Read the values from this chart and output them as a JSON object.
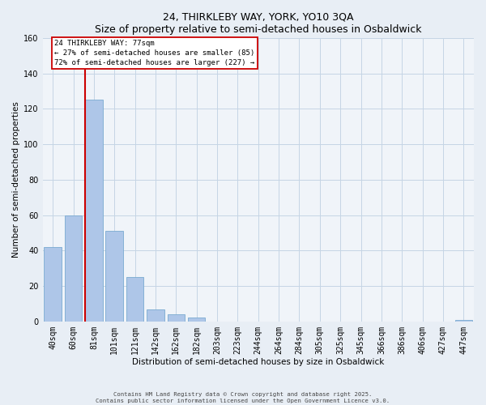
{
  "title": "24, THIRKLEBY WAY, YORK, YO10 3QA",
  "subtitle": "Size of property relative to semi-detached houses in Osbaldwick",
  "xlabel": "Distribution of semi-detached houses by size in Osbaldwick",
  "ylabel": "Number of semi-detached properties",
  "bins": [
    "40sqm",
    "60sqm",
    "81sqm",
    "101sqm",
    "121sqm",
    "142sqm",
    "162sqm",
    "182sqm",
    "203sqm",
    "223sqm",
    "244sqm",
    "264sqm",
    "284sqm",
    "305sqm",
    "325sqm",
    "345sqm",
    "366sqm",
    "386sqm",
    "406sqm",
    "427sqm",
    "447sqm"
  ],
  "values": [
    42,
    60,
    125,
    51,
    25,
    7,
    4,
    2,
    0,
    0,
    0,
    0,
    0,
    0,
    0,
    0,
    0,
    0,
    0,
    0,
    1
  ],
  "bar_color": "#aec6e8",
  "bar_edge_color": "#7aaad0",
  "property_size": "77sqm",
  "pct_smaller": 27,
  "count_smaller": 85,
  "pct_larger": 72,
  "count_larger": 227,
  "annotation_label": "24 THIRKLEBY WAY: 77sqm",
  "ylim": [
    0,
    160
  ],
  "yticks": [
    0,
    20,
    40,
    60,
    80,
    100,
    120,
    140,
    160
  ],
  "footer1": "Contains HM Land Registry data © Crown copyright and database right 2025.",
  "footer2": "Contains public sector information licensed under the Open Government Licence v3.0.",
  "bg_color": "#e8eef5",
  "plot_bg_color": "#f0f4f9",
  "grid_color": "#c5d5e5",
  "red_line_color": "#cc0000",
  "box_edge_color": "#cc0000",
  "title_fontsize": 9,
  "axis_label_fontsize": 7.5,
  "tick_fontsize": 7,
  "annotation_fontsize": 6.5
}
